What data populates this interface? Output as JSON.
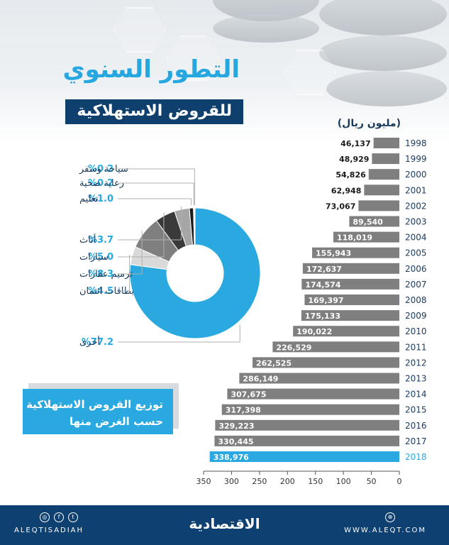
{
  "title": "التطور السنوي",
  "subtitle": "للقروض الاستهلاكية",
  "unit_label": "(مليون ريال)",
  "colors": {
    "bar": "#7f7f7f",
    "highlight": "#29a9e0",
    "navy": "#0f3f6c",
    "donut_main": "#29a9e0"
  },
  "chart_data": [
    {
      "type": "bar",
      "orientation": "horizontal",
      "categories": [
        "1998",
        "1999",
        "2000",
        "2001",
        "2002",
        "2003",
        "2004",
        "2005",
        "2006",
        "2007",
        "2008",
        "2009",
        "2010",
        "2011",
        "2012",
        "2013",
        "2014",
        "2015",
        "2016",
        "2017",
        "2018"
      ],
      "values": [
        46137,
        48929,
        54826,
        62948,
        73067,
        89540,
        118019,
        155943,
        172637,
        174574,
        169397,
        175133,
        190022,
        226529,
        262525,
        286149,
        307675,
        317398,
        329223,
        330445,
        338976
      ],
      "value_labels": [
        "46,137",
        "48,929",
        "54,826",
        "62,948",
        "73,067",
        "89,540",
        "118,019",
        "155,943",
        "172,637",
        "174,574",
        "169,397",
        "175,133",
        "190,022",
        "226,529",
        "262,525",
        "286,149",
        "307,675",
        "317,398",
        "329,223",
        "330,445",
        "338,976"
      ],
      "highlight_category": "2018",
      "axis_ticks": [
        "350",
        "300",
        "250",
        "200",
        "150",
        "100",
        "50",
        "0"
      ],
      "xlim": [
        0,
        350
      ],
      "axis_direction": "right-to-left"
    },
    {
      "type": "pie",
      "style": "donut",
      "title": "توزيع القروض الاستهلاكية حسب الغرض منها",
      "title_line1": "توزيع القروض الاستهلاكية",
      "title_line2": "حسب الغرض منها",
      "slices": [
        {
          "label": "أخرى",
          "value": 77.2,
          "display": "%77.2",
          "color": "#29a9e0"
        },
        {
          "label": "بطاقات ائتمان",
          "value": 4.5,
          "display": "%4.5",
          "color": "#d9d9d9"
        },
        {
          "label": "ترميم عقارات",
          "value": 8.3,
          "display": "%8.3",
          "color": "#7f7f7f"
        },
        {
          "label": "سيارات",
          "value": 5.0,
          "display": "%5.0",
          "color": "#3a3a3a"
        },
        {
          "label": "أثاث",
          "value": 3.7,
          "display": "%3.7",
          "color": "#a6a6a6"
        },
        {
          "label": "تعليم",
          "value": 1.0,
          "display": "%1.0",
          "color": "#1a1a1a"
        },
        {
          "label": "رعاية صحية",
          "value": 0.2,
          "display": "%0.2",
          "color": "#595959"
        },
        {
          "label": "سياحة وسفر",
          "value": 0.2,
          "display": "%0.2",
          "color": "#bfbfbf"
        }
      ]
    }
  ],
  "footer": {
    "logo": "الاقتصادية",
    "left_handle": "ALEQTISADIAH",
    "right_url": "WWW.ALEQT.COM",
    "social_icons": [
      "instagram-icon",
      "facebook-icon",
      "twitter-icon"
    ],
    "web_icon": "globe-icon"
  }
}
